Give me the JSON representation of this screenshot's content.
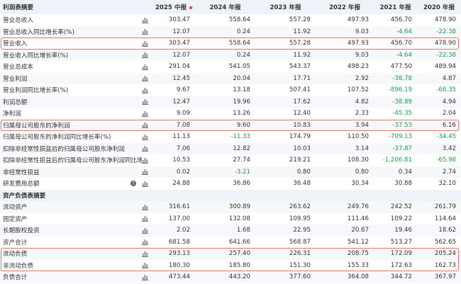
{
  "header": {
    "columns": [
      "2025 中报",
      "2024 年报",
      "2023 年报",
      "2022 年报",
      "2021 年报",
      "2020 年报"
    ]
  },
  "sections": [
    {
      "title": "利润表摘要",
      "rows": [
        {
          "label": "营业总收入",
          "values": [
            "303.47",
            "558.64",
            "557.28",
            "497.93",
            "456.70",
            "478.90"
          ]
        },
        {
          "label": "营业总收入同比增长率(%)",
          "values": [
            "12.07",
            "0.24",
            "11.92",
            "9.03",
            "-4.64",
            "-22.38"
          ]
        },
        {
          "label": "营业收入",
          "highlight": true,
          "values": [
            "303.47",
            "558.64",
            "557.28",
            "497.93",
            "456.70",
            "478.90"
          ]
        },
        {
          "label": "营业收入同比增长率(%)",
          "values": [
            "12.07",
            "0.24",
            "11.92",
            "9.03",
            "-4.64",
            "-22.38"
          ]
        },
        {
          "label": "营业总成本",
          "values": [
            "291.04",
            "541.05",
            "543.37",
            "498.23",
            "477.50",
            "489.94"
          ]
        },
        {
          "label": "营业利润",
          "values": [
            "12.45",
            "20.04",
            "17.71",
            "2.92",
            "-38.78",
            "4.87"
          ]
        },
        {
          "label": "营业利润同比增长率(%)",
          "values": [
            "9.67",
            "13.18",
            "507.41",
            "107.52",
            "-896.19",
            "-68.35"
          ]
        },
        {
          "label": "利润总额",
          "values": [
            "12.47",
            "19.96",
            "17.62",
            "4.82",
            "-38.89",
            "4.94"
          ]
        },
        {
          "label": "净利润",
          "values": [
            "9.09",
            "13.26",
            "12.40",
            "2.33",
            "-45.35",
            "2.04"
          ]
        },
        {
          "label": "归属母公司股东的净利润",
          "highlight": true,
          "values": [
            "7.08",
            "9.60",
            "10.83",
            "3.94",
            "-37.53",
            "6.16"
          ]
        },
        {
          "label": "归属母公司股东的净利润同比增长率(%)",
          "values": [
            "11.13",
            "-11.33",
            "174.79",
            "110.50",
            "-709.13",
            "-34.45"
          ]
        },
        {
          "label": "扣除非经常性损益后的归属母公司股东净利润",
          "values": [
            "7.06",
            "12.82",
            "10.03",
            "3.14",
            "-37.87",
            "3.42"
          ]
        },
        {
          "label": "扣除非经常性损益后的归属母公司股东净利润同比增",
          "values": [
            "10.53",
            "27.74",
            "219.21",
            "108.30",
            "-1,206.81",
            "-65.98"
          ]
        },
        {
          "label": "非经常性损益",
          "values": [
            "0.02",
            "-3.21",
            "0.80",
            "0.80",
            "0.34",
            "2.74"
          ]
        },
        {
          "label": "研发费用总额",
          "info": true,
          "values": [
            "24.88",
            "36.86",
            "36.48",
            "30.34",
            "30.88",
            "32.10"
          ]
        }
      ]
    },
    {
      "title": "资产负债表摘要",
      "rows": [
        {
          "label": "流动资产",
          "values": [
            "316.61",
            "300.89",
            "263.62",
            "249.76",
            "242.52",
            "261.79"
          ]
        },
        {
          "label": "固定资产",
          "values": [
            "137.00",
            "132.08",
            "109.95",
            "111.46",
            "109.22",
            "114.64"
          ]
        },
        {
          "label": "长期股权投资",
          "values": [
            "2.02",
            "1.68",
            "22.95",
            "20.87",
            "19.46",
            "18.62"
          ]
        },
        {
          "label": "资产合计",
          "values": [
            "681.58",
            "641.66",
            "568.87",
            "541.12",
            "513.27",
            "562.65"
          ]
        },
        {
          "label": "流动负债",
          "highlight": true,
          "values": [
            "293.13",
            "257.40",
            "226.31",
            "208.75",
            "172.09",
            "205.24"
          ]
        },
        {
          "label": "非流动负债",
          "highlight": true,
          "values": [
            "180.30",
            "185.80",
            "151.30",
            "155.33",
            "172.63",
            "162.73"
          ]
        },
        {
          "label": "负债合计",
          "values": [
            "473.44",
            "443.20",
            "377.60",
            "364.08",
            "344.72",
            "367.97"
          ]
        }
      ]
    }
  ]
}
